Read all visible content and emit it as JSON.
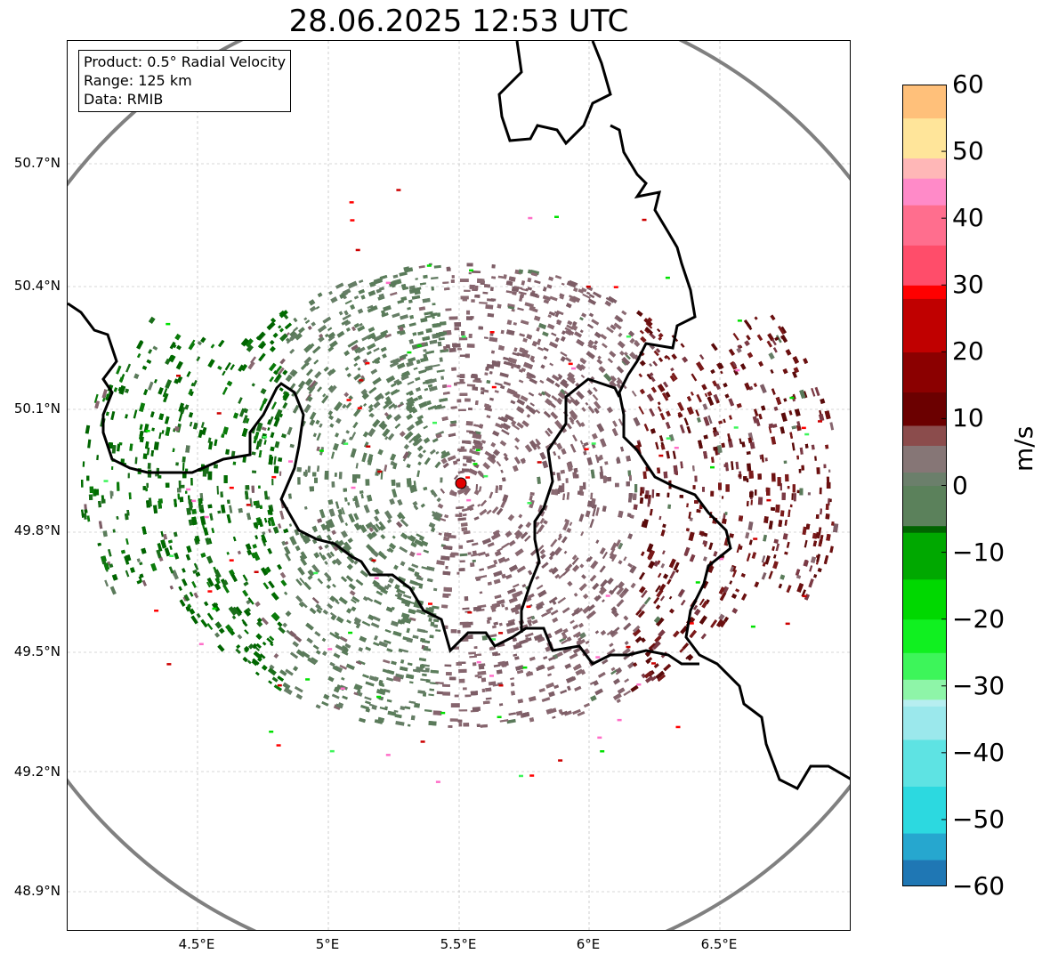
{
  "title": "28.06.2025 12:53 UTC",
  "info": {
    "product": "Product: 0.5° Radial Velocity",
    "range": "Range: 125 km",
    "data": "Data: RMIB"
  },
  "axes": {
    "lat_ticks": [
      "50.7°N",
      "50.4°N",
      "50.1°N",
      "49.8°N",
      "49.5°N",
      "49.2°N",
      "48.9°N"
    ],
    "lon_ticks": [
      "4.5°E",
      "5°E",
      "5.5°E",
      "6°E",
      "6.5°E"
    ]
  },
  "colorbar": {
    "unit": "m/s",
    "min": -60,
    "max": 60,
    "tick_labels": [
      "60",
      "50",
      "40",
      "30",
      "20",
      "10",
      "0",
      "−10",
      "−20",
      "−30",
      "−40",
      "−50",
      "−60"
    ],
    "stops": [
      {
        "v": -60,
        "c": "#1f77b4"
      },
      {
        "v": -56,
        "c": "#26a7cf"
      },
      {
        "v": -52,
        "c": "#2cd9e0"
      },
      {
        "v": -45,
        "c": "#5ee3e3"
      },
      {
        "v": -38,
        "c": "#9be8ec"
      },
      {
        "v": -33,
        "c": "#b7eef0"
      },
      {
        "v": -32,
        "c": "#8ef5a8"
      },
      {
        "v": -29,
        "c": "#3df55a"
      },
      {
        "v": -25,
        "c": "#10f020"
      },
      {
        "v": -20,
        "c": "#00d800"
      },
      {
        "v": -14,
        "c": "#00a800"
      },
      {
        "v": -7,
        "c": "#006400"
      },
      {
        "v": -6,
        "c": "#5b815b"
      },
      {
        "v": 0,
        "c": "#6b7f6b"
      },
      {
        "v": 2,
        "c": "#867676"
      },
      {
        "v": 6,
        "c": "#8b4c4c"
      },
      {
        "v": 9,
        "c": "#6b0000"
      },
      {
        "v": 14,
        "c": "#8b0000"
      },
      {
        "v": 20,
        "c": "#c00000"
      },
      {
        "v": 28,
        "c": "#ff0000"
      },
      {
        "v": 30,
        "c": "#ff4d6a"
      },
      {
        "v": 36,
        "c": "#ff6e8e"
      },
      {
        "v": 42,
        "c": "#ff8ac8"
      },
      {
        "v": 46,
        "c": "#ffb7b7"
      },
      {
        "v": 49,
        "c": "#ffe59a"
      },
      {
        "v": 55,
        "c": "#ffc07a"
      },
      {
        "v": 60,
        "c": "#ff9850"
      }
    ]
  },
  "radar": {
    "site_lon": 5.5,
    "site_lat": 49.91,
    "range_km": 125
  },
  "colors": {
    "range_ring": "#808080",
    "border": "#000000",
    "site_marker": "#e00000",
    "inbound_green": "#006400",
    "near_zero_green": "#5b7d5b",
    "near_zero_purple": "#86656e",
    "outbound_maroon": "#6b1010"
  }
}
